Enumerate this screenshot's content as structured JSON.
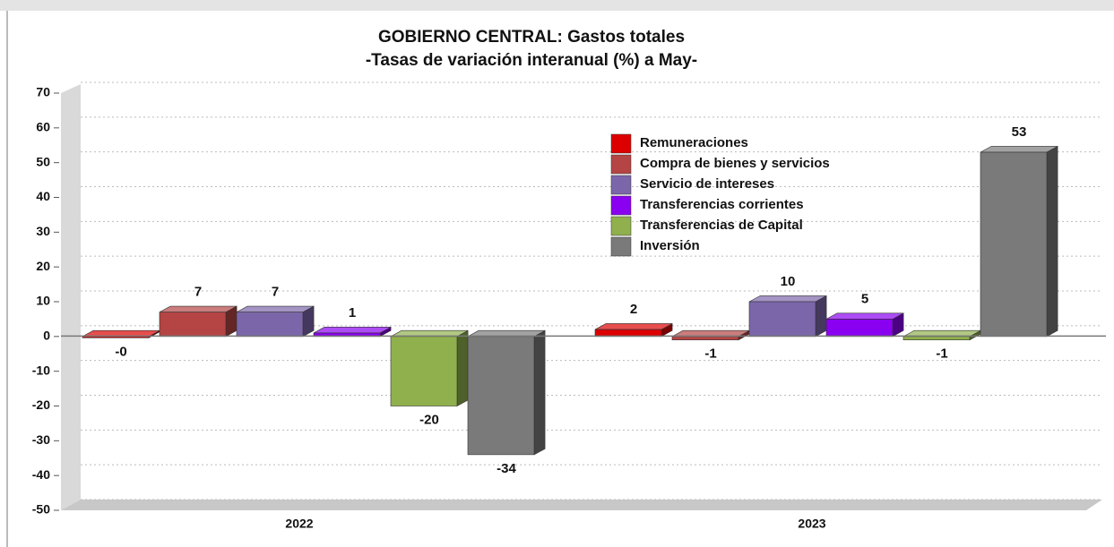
{
  "chart_data": {
    "type": "bar3d",
    "title": "GOBIERNO CENTRAL: Gastos totales",
    "subtitle": "-Tasas de variación interanual (%) a May-",
    "categories": [
      "2022",
      "2023"
    ],
    "series": [
      {
        "name": "Remuneraciones",
        "color": "#dd0000",
        "values": [
          -0.3,
          2
        ],
        "value_labels": [
          "-0",
          "2"
        ]
      },
      {
        "name": "Compra de bienes y servicios",
        "color": "#b54444",
        "values": [
          7,
          -1
        ]
      },
      {
        "name": "Servicio de intereses",
        "color": "#7b66aa",
        "values": [
          7,
          10
        ]
      },
      {
        "name": "Transferencias corrientes",
        "color": "#8a00f0",
        "values": [
          1,
          5
        ]
      },
      {
        "name": "Transferencias de Capital",
        "color": "#8fb04c",
        "values": [
          -20,
          -1
        ]
      },
      {
        "name": "Inversión",
        "color": "#7a7a7a",
        "values": [
          -34,
          53
        ]
      }
    ],
    "ylim": [
      -50,
      70
    ],
    "yticks": [
      -50,
      -40,
      -30,
      -20,
      -10,
      0,
      10,
      20,
      30,
      40,
      50,
      60,
      70
    ],
    "grid": true,
    "legend": "top-right"
  }
}
